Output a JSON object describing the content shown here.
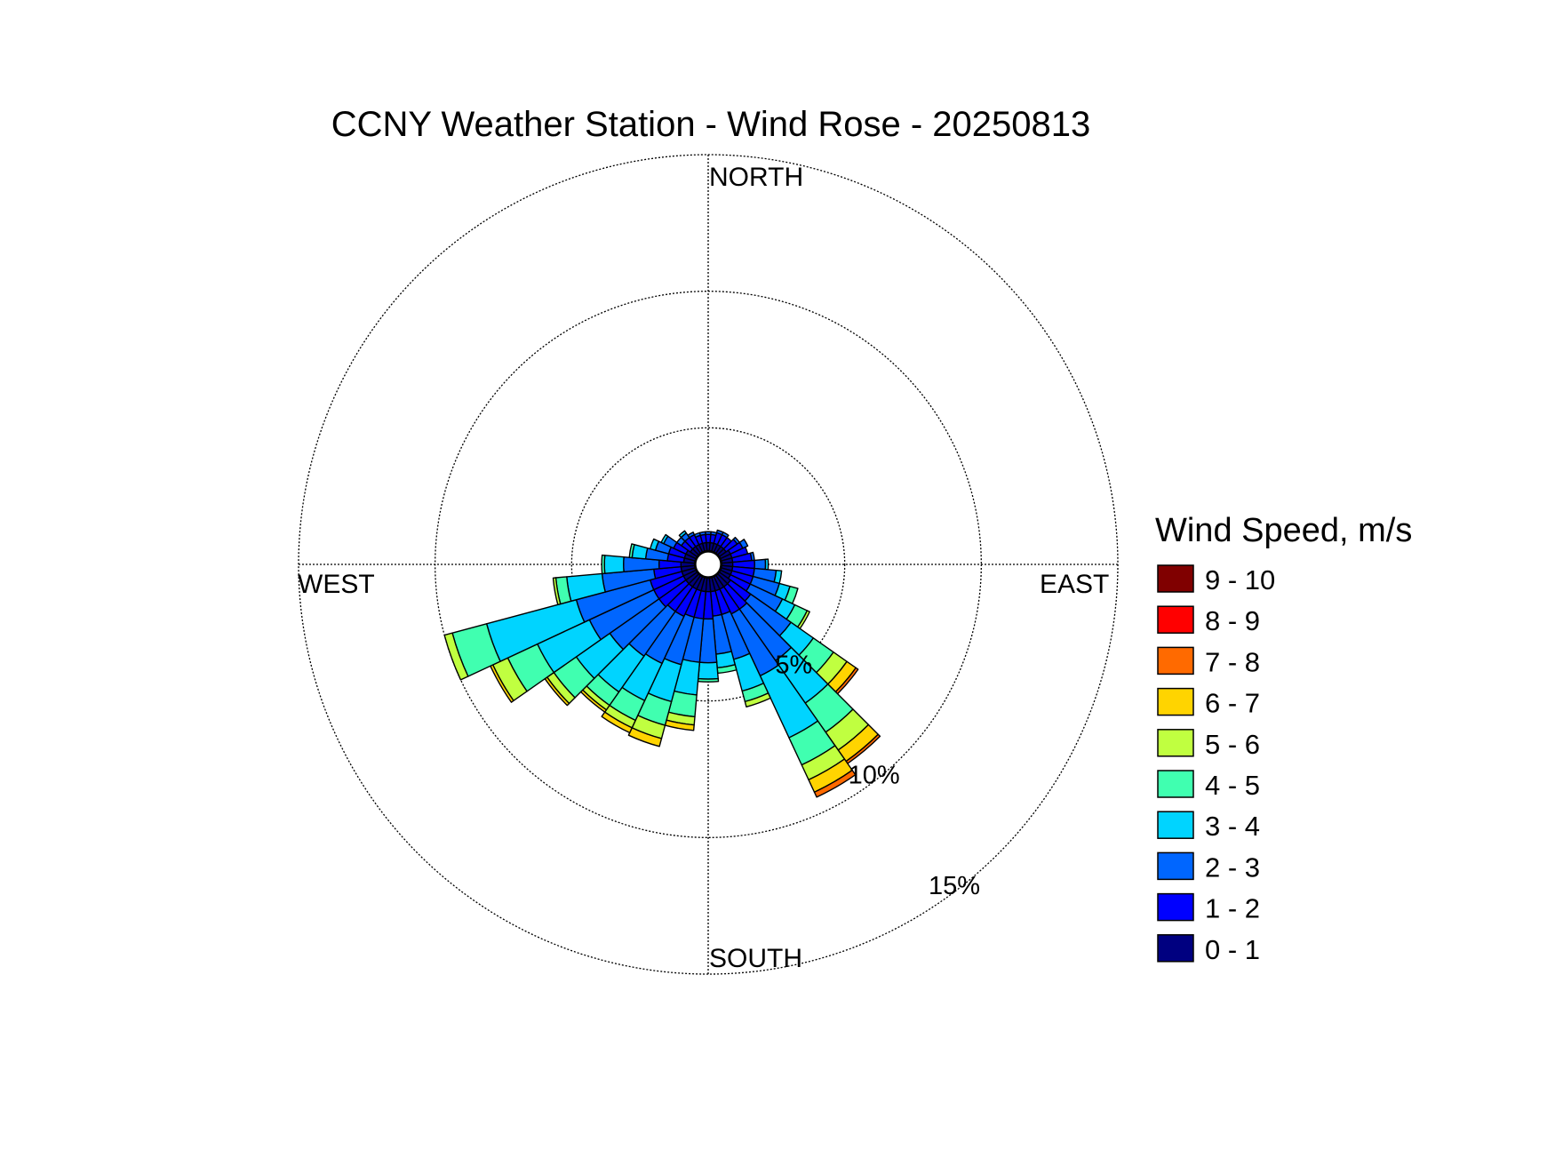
{
  "chart_data": {
    "type": "wind-rose",
    "title": "CCNY Weather Station - Wind Rose - 20250813",
    "directions": {
      "north": "NORTH",
      "east": "EAST",
      "south": "SOUTH",
      "west": "WEST"
    },
    "rings": [
      {
        "value": 5,
        "label": "5%"
      },
      {
        "value": 10,
        "label": "10%"
      },
      {
        "value": 15,
        "label": "15%"
      }
    ],
    "rmax": 15,
    "calm_radius": 0.5,
    "sector_width_deg": 10,
    "legend": {
      "title": "Wind Speed, m/s",
      "bins": [
        {
          "label": "9 - 10",
          "color": "#800000"
        },
        {
          "label": "8 - 9",
          "color": "#ff0000"
        },
        {
          "label": "7 - 8",
          "color": "#ff6a00"
        },
        {
          "label": "6 - 7",
          "color": "#ffd400"
        },
        {
          "label": "5 - 6",
          "color": "#c0ff40"
        },
        {
          "label": "4 - 5",
          "color": "#40ffb0"
        },
        {
          "label": "3 - 4",
          "color": "#00d4ff"
        },
        {
          "label": "2 - 3",
          "color": "#0066ff"
        },
        {
          "label": "1 - 2",
          "color": "#0000ff"
        },
        {
          "label": "0 - 1",
          "color": "#000080"
        }
      ]
    },
    "bin_order": [
      "0 - 1",
      "1 - 2",
      "2 - 3",
      "3 - 4",
      "4 - 5",
      "5 - 6",
      "6 - 7",
      "7 - 8",
      "8 - 9",
      "9 - 10"
    ],
    "sectors": [
      {
        "dir": 0,
        "counts": [
          0.3,
          0.3,
          0.1
        ]
      },
      {
        "dir": 10,
        "counts": [
          0.3,
          0.3,
          0.1
        ]
      },
      {
        "dir": 20,
        "counts": [
          0.3,
          0.4,
          0.1
        ]
      },
      {
        "dir": 30,
        "counts": [
          0.3,
          0.4,
          0.1
        ]
      },
      {
        "dir": 40,
        "counts": [
          0.3,
          0.4
        ]
      },
      {
        "dir": 50,
        "counts": [
          0.3,
          0.5,
          0.1
        ]
      },
      {
        "dir": 60,
        "counts": [
          0.4,
          0.5,
          0.2
        ]
      },
      {
        "dir": 70,
        "counts": [
          0.4,
          0.6
        ]
      },
      {
        "dir": 80,
        "counts": [
          0.4,
          0.7,
          0.1
        ]
      },
      {
        "dir": 90,
        "counts": [
          0.4,
          0.8,
          0.4,
          0.1
        ]
      },
      {
        "dir": 100,
        "counts": [
          0.4,
          0.8,
          0.8,
          0.2
        ]
      },
      {
        "dir": 110,
        "counts": [
          0.4,
          0.8,
          1.0,
          0.4,
          0.3
        ]
      },
      {
        "dir": 120,
        "counts": [
          0.4,
          0.8,
          1.3,
          0.5,
          0.5,
          0.1
        ]
      },
      {
        "dir": 130,
        "counts": [
          0.5,
          0.9,
          1.8,
          1.0,
          0.9,
          0.6,
          0.4,
          0.1
        ]
      },
      {
        "dir": 140,
        "counts": [
          0.5,
          1.0,
          2.3,
          1.9,
          1.3,
          0.8,
          0.5,
          0.1
        ]
      },
      {
        "dir": 150,
        "counts": [
          0.5,
          1.0,
          2.5,
          2.5,
          1.1,
          0.6,
          0.5,
          0.2
        ]
      },
      {
        "dir": 160,
        "counts": [
          0.5,
          0.9,
          1.7,
          1.2,
          0.4,
          0.2
        ]
      },
      {
        "dir": 170,
        "counts": [
          0.5,
          0.9,
          1.4,
          0.5,
          0.2
        ]
      },
      {
        "dir": 180,
        "counts": [
          0.5,
          1.0,
          1.6,
          0.6,
          0.1
        ]
      },
      {
        "dir": 190,
        "counts": [
          0.5,
          1.0,
          1.6,
          1.2,
          0.8,
          0.3,
          0.2
        ]
      },
      {
        "dir": 200,
        "counts": [
          0.5,
          1.0,
          1.8,
          1.4,
          0.9,
          0.5,
          0.3
        ]
      },
      {
        "dir": 210,
        "counts": [
          0.5,
          1.1,
          1.9,
          1.5,
          0.8,
          0.3,
          0.2
        ]
      },
      {
        "dir": 220,
        "counts": [
          0.5,
          1.1,
          2.0,
          1.6,
          0.6,
          0.2,
          0.1
        ]
      },
      {
        "dir": 230,
        "counts": [
          0.5,
          1.2,
          2.2,
          1.5,
          1.0,
          0.3,
          0.1
        ]
      },
      {
        "dir": 240,
        "counts": [
          0.5,
          1.2,
          2.6,
          2.1,
          1.2,
          0.6,
          0.1
        ]
      },
      {
        "dir": 250,
        "counts": [
          0.5,
          1.2,
          2.8,
          3.4,
          1.3,
          0.3
        ]
      },
      {
        "dir": 260,
        "counts": [
          0.5,
          1.0,
          1.9,
          1.3,
          0.4,
          0.1
        ]
      },
      {
        "dir": 270,
        "counts": [
          0.5,
          0.8,
          1.3,
          0.7,
          0.1
        ]
      },
      {
        "dir": 280,
        "counts": [
          0.4,
          0.6,
          0.8,
          0.5,
          0.1
        ]
      },
      {
        "dir": 290,
        "counts": [
          0.4,
          0.6,
          0.5,
          0.2
        ]
      },
      {
        "dir": 300,
        "counts": [
          0.4,
          0.5,
          0.4,
          0.1
        ]
      },
      {
        "dir": 310,
        "counts": [
          0.3,
          0.4,
          0.2
        ]
      },
      {
        "dir": 320,
        "counts": [
          0.3,
          0.4,
          0.2,
          0.1
        ]
      },
      {
        "dir": 330,
        "counts": [
          0.3,
          0.4,
          0.1
        ]
      },
      {
        "dir": 340,
        "counts": [
          0.3,
          0.3,
          0.1
        ]
      },
      {
        "dir": 350,
        "counts": [
          0.3,
          0.3,
          0.1
        ]
      }
    ]
  }
}
